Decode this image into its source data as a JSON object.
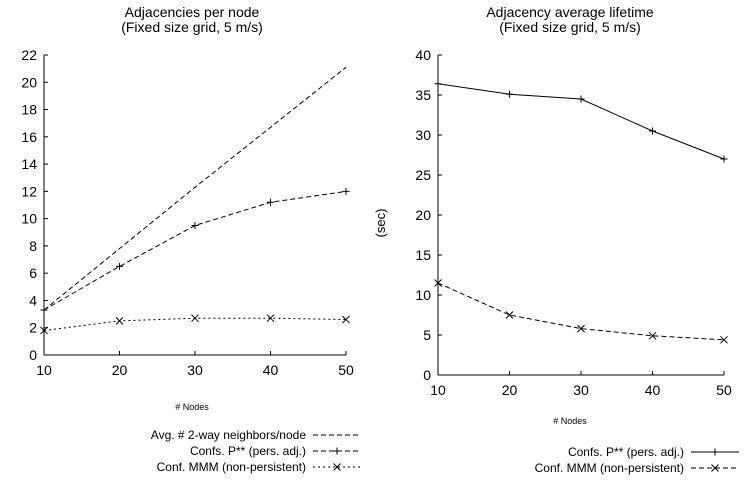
{
  "chart_data": [
    {
      "type": "line",
      "title": "Adjacencies per node",
      "subtitle": "(Fixed size grid, 5 m/s)",
      "xlabel": "# Nodes",
      "ylabel": "",
      "xlim": [
        10,
        50
      ],
      "ylim": [
        0,
        22
      ],
      "x_ticks": [
        "10",
        "20",
        "30",
        "40",
        "50"
      ],
      "y_ticks": [
        "0",
        "2",
        "4",
        "6",
        "8",
        "10",
        "12",
        "14",
        "16",
        "18",
        "20",
        "22"
      ],
      "x": [
        10,
        20,
        30,
        40,
        50
      ],
      "grid": false,
      "legend_position": "bottom",
      "series": [
        {
          "name": "Avg. # 2-way neighbors/node",
          "style": "dashed",
          "marker": "none",
          "values": [
            3.3,
            7.8,
            12.3,
            16.7,
            21.1
          ]
        },
        {
          "name": "Confs. P** (pers. adj.)",
          "style": "dashed",
          "marker": "plus",
          "values": [
            3.3,
            6.5,
            9.5,
            11.2,
            12.0
          ]
        },
        {
          "name": "Conf. MMM (non-persistent)",
          "style": "dotted",
          "marker": "cross",
          "values": [
            1.8,
            2.5,
            2.7,
            2.7,
            2.6
          ]
        }
      ]
    },
    {
      "type": "line",
      "title": "Adjacency average lifetime",
      "subtitle": "(Fixed size grid, 5 m/s)",
      "xlabel": "# Nodes",
      "ylabel": "(sec)",
      "xlim": [
        10,
        50
      ],
      "ylim": [
        0,
        40
      ],
      "x_ticks": [
        "10",
        "20",
        "30",
        "40",
        "50"
      ],
      "y_ticks": [
        "0",
        "5",
        "10",
        "15",
        "20",
        "25",
        "30",
        "35",
        "40"
      ],
      "x": [
        10,
        20,
        30,
        40,
        50
      ],
      "grid": false,
      "legend_position": "bottom",
      "series": [
        {
          "name": "Confs. P** (pers. adj.)",
          "style": "solid",
          "marker": "plus",
          "values": [
            36.4,
            35.1,
            34.5,
            30.5,
            27.0
          ]
        },
        {
          "name": "Conf. MMM (non-persistent)",
          "style": "dashed",
          "marker": "cross",
          "values": [
            11.5,
            7.5,
            5.8,
            4.9,
            4.4
          ]
        }
      ]
    }
  ]
}
